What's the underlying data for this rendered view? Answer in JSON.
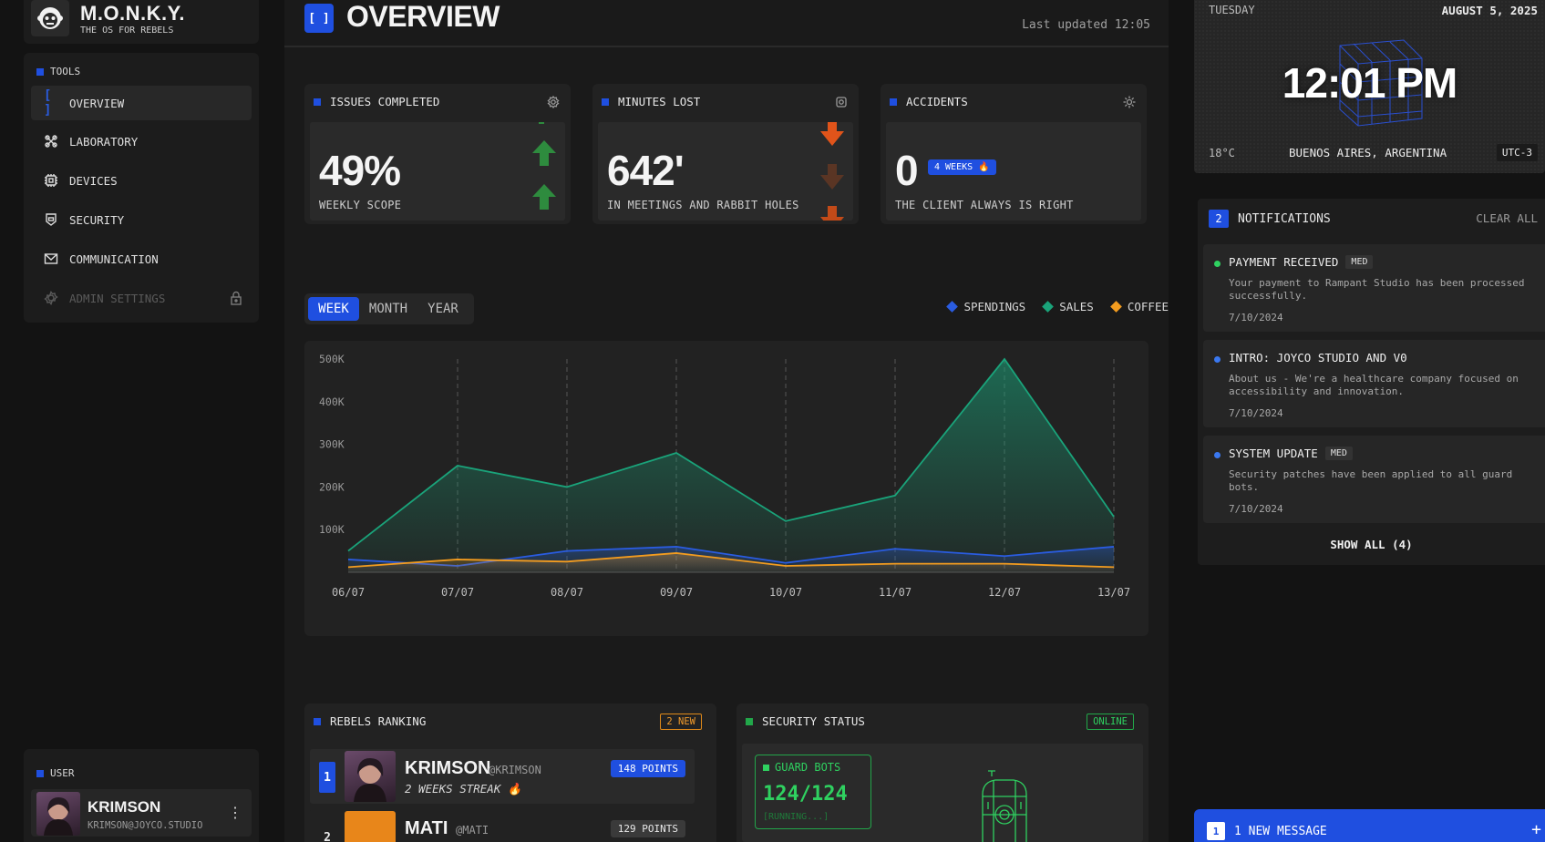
{
  "brand": {
    "name": "M.O.N.K.Y.",
    "tagline": "THE OS FOR REBELS"
  },
  "sidebar": {
    "tools_title": "TOOLS",
    "items": [
      {
        "label": "OVERVIEW",
        "icon": "brackets-icon",
        "active": true
      },
      {
        "label": "LABORATORY",
        "icon": "atom-icon"
      },
      {
        "label": "DEVICES",
        "icon": "chip-icon"
      },
      {
        "label": "SECURITY",
        "icon": "shield-icon"
      },
      {
        "label": "COMMUNICATION",
        "icon": "mail-icon"
      },
      {
        "label": "ADMIN SETTINGS",
        "icon": "gear-icon",
        "disabled": true
      }
    ]
  },
  "user": {
    "title": "USER",
    "name": "KRIMSON",
    "email": "KRIMSON@JOYCO.STUDIO"
  },
  "header": {
    "icon_text": "[ ]",
    "title": "OVERVIEW",
    "updated": "Last updated 12:05"
  },
  "stats": [
    {
      "title": "ISSUES COMPLETED",
      "value": "49%",
      "sub": "WEEKLY SCOPE"
    },
    {
      "title": "MINUTES LOST",
      "value": "642'",
      "sub": "IN MEETINGS AND RABBIT HOLES"
    },
    {
      "title": "ACCIDENTS",
      "value": "0",
      "badge": "4 WEEKS 🔥",
      "sub": "THE CLIENT ALWAYS IS RIGHT"
    }
  ],
  "range_tabs": [
    "WEEK",
    "MONTH",
    "YEAR"
  ],
  "colors": {
    "accent": "#1f4fe0",
    "sales": "#1aa37a",
    "spendings": "#2a5ce0",
    "coffee": "#f39c1f",
    "online": "#2fd160",
    "down": "#e0541a",
    "up": "#2e8b3e"
  },
  "chart_data": {
    "type": "area",
    "categories": [
      "06/07",
      "07/07",
      "08/07",
      "09/07",
      "10/07",
      "11/07",
      "12/07",
      "13/07"
    ],
    "ytick_labels": [
      "500K",
      "400K",
      "300K",
      "200K",
      "100K"
    ],
    "ylim": [
      0,
      500000
    ],
    "grid": "vertical dashed",
    "legend_position": "top-right",
    "series": [
      {
        "name": "SPENDINGS",
        "color": "#2a5ce0",
        "values": [
          30000,
          15000,
          50000,
          60000,
          22000,
          55000,
          38000,
          60000
        ]
      },
      {
        "name": "SALES",
        "color": "#1aa37a",
        "values": [
          50000,
          250000,
          200000,
          280000,
          120000,
          180000,
          500000,
          130000
        ]
      },
      {
        "name": "COFFEE",
        "color": "#f39c1f",
        "values": [
          12000,
          30000,
          25000,
          45000,
          15000,
          20000,
          20000,
          12000
        ]
      }
    ]
  },
  "ranking": {
    "title": "REBELS RANKING",
    "badge": "2 NEW",
    "rows": [
      {
        "rank": "1",
        "name": "KRIMSON",
        "handle": "@KRIMSON",
        "streak": "2 WEEKS STREAK 🔥",
        "points": "148 POINTS"
      },
      {
        "rank": "2",
        "name": "MATI",
        "handle": "@MATI",
        "points": "129 POINTS"
      }
    ]
  },
  "security": {
    "title": "SECURITY STATUS",
    "status": "ONLINE",
    "guard_title": "GUARD BOTS",
    "guard_value": "124/124",
    "guard_state": "[RUNNING...]"
  },
  "clock": {
    "day": "TUESDAY",
    "date": "AUGUST 5, 2025",
    "time": "12:01 PM",
    "temp": "18°C",
    "city": "BUENOS AIRES, ARGENTINA",
    "tz": "UTC-3"
  },
  "notifications": {
    "count": "2",
    "title": "NOTIFICATIONS",
    "clear": "CLEAR ALL",
    "items": [
      {
        "title": "PAYMENT RECEIVED",
        "tag": "MED",
        "body": "Your payment to Rampant Studio has been processed successfully.",
        "date": "7/10/2024",
        "dot": "#2fd160"
      },
      {
        "title": "INTRO: JOYCO STUDIO AND V0",
        "body": "About us - We're a healthcare company focused on accessibility and innovation.",
        "date": "7/10/2024",
        "dot": "#3a78f0"
      },
      {
        "title": "SYSTEM UPDATE",
        "tag": "MED",
        "body": "Security patches have been applied to all guard bots.",
        "date": "7/10/2024",
        "dot": "#3a78f0"
      }
    ],
    "show_all": "SHOW ALL (4)"
  },
  "new_message": {
    "count": "1",
    "label": "1 NEW MESSAGE"
  }
}
